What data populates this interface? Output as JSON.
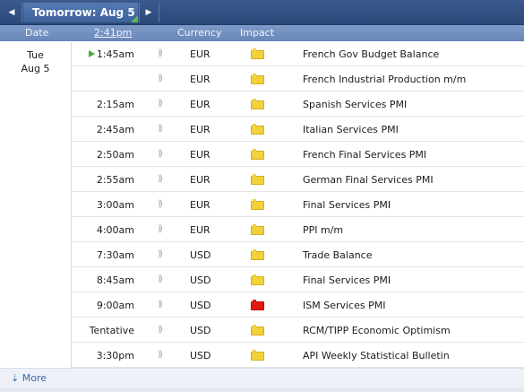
{
  "nav": {
    "prev_glyph": "◀",
    "title": "Tomorrow: Aug 5",
    "next_glyph": "▶"
  },
  "columns": {
    "date": "Date",
    "time": "2:41pm",
    "currency": "Currency",
    "impact": "Impact"
  },
  "date_group": {
    "day": "Tue",
    "date": "Aug 5"
  },
  "colors": {
    "medium_impact": "#f2d13a",
    "high_impact": "#e3190f",
    "upcoming_marker": "#4cae3a"
  },
  "events": [
    {
      "time": "1:45am",
      "currency": "EUR",
      "impact": "medium",
      "title": "French Gov Budget Balance",
      "upcoming": true
    },
    {
      "time": "",
      "currency": "EUR",
      "impact": "medium",
      "title": "French Industrial Production m/m"
    },
    {
      "time": "2:15am",
      "currency": "EUR",
      "impact": "medium",
      "title": "Spanish Services PMI"
    },
    {
      "time": "2:45am",
      "currency": "EUR",
      "impact": "medium",
      "title": "Italian Services PMI"
    },
    {
      "time": "2:50am",
      "currency": "EUR",
      "impact": "medium",
      "title": "French Final Services PMI"
    },
    {
      "time": "2:55am",
      "currency": "EUR",
      "impact": "medium",
      "title": "German Final Services PMI"
    },
    {
      "time": "3:00am",
      "currency": "EUR",
      "impact": "medium",
      "title": "Final Services PMI"
    },
    {
      "time": "4:00am",
      "currency": "EUR",
      "impact": "medium",
      "title": "PPI m/m"
    },
    {
      "time": "7:30am",
      "currency": "USD",
      "impact": "medium",
      "title": "Trade Balance"
    },
    {
      "time": "8:45am",
      "currency": "USD",
      "impact": "medium",
      "title": "Final Services PMI"
    },
    {
      "time": "9:00am",
      "currency": "USD",
      "impact": "high",
      "title": "ISM Services PMI"
    },
    {
      "time": "Tentative",
      "currency": "USD",
      "impact": "medium",
      "title": "RCM/TIPP Economic Optimism"
    },
    {
      "time": "3:30pm",
      "currency": "USD",
      "impact": "medium",
      "title": "API Weekly Statistical Bulletin"
    }
  ],
  "footer": {
    "more_label": "More",
    "more_icon": "⇣"
  }
}
